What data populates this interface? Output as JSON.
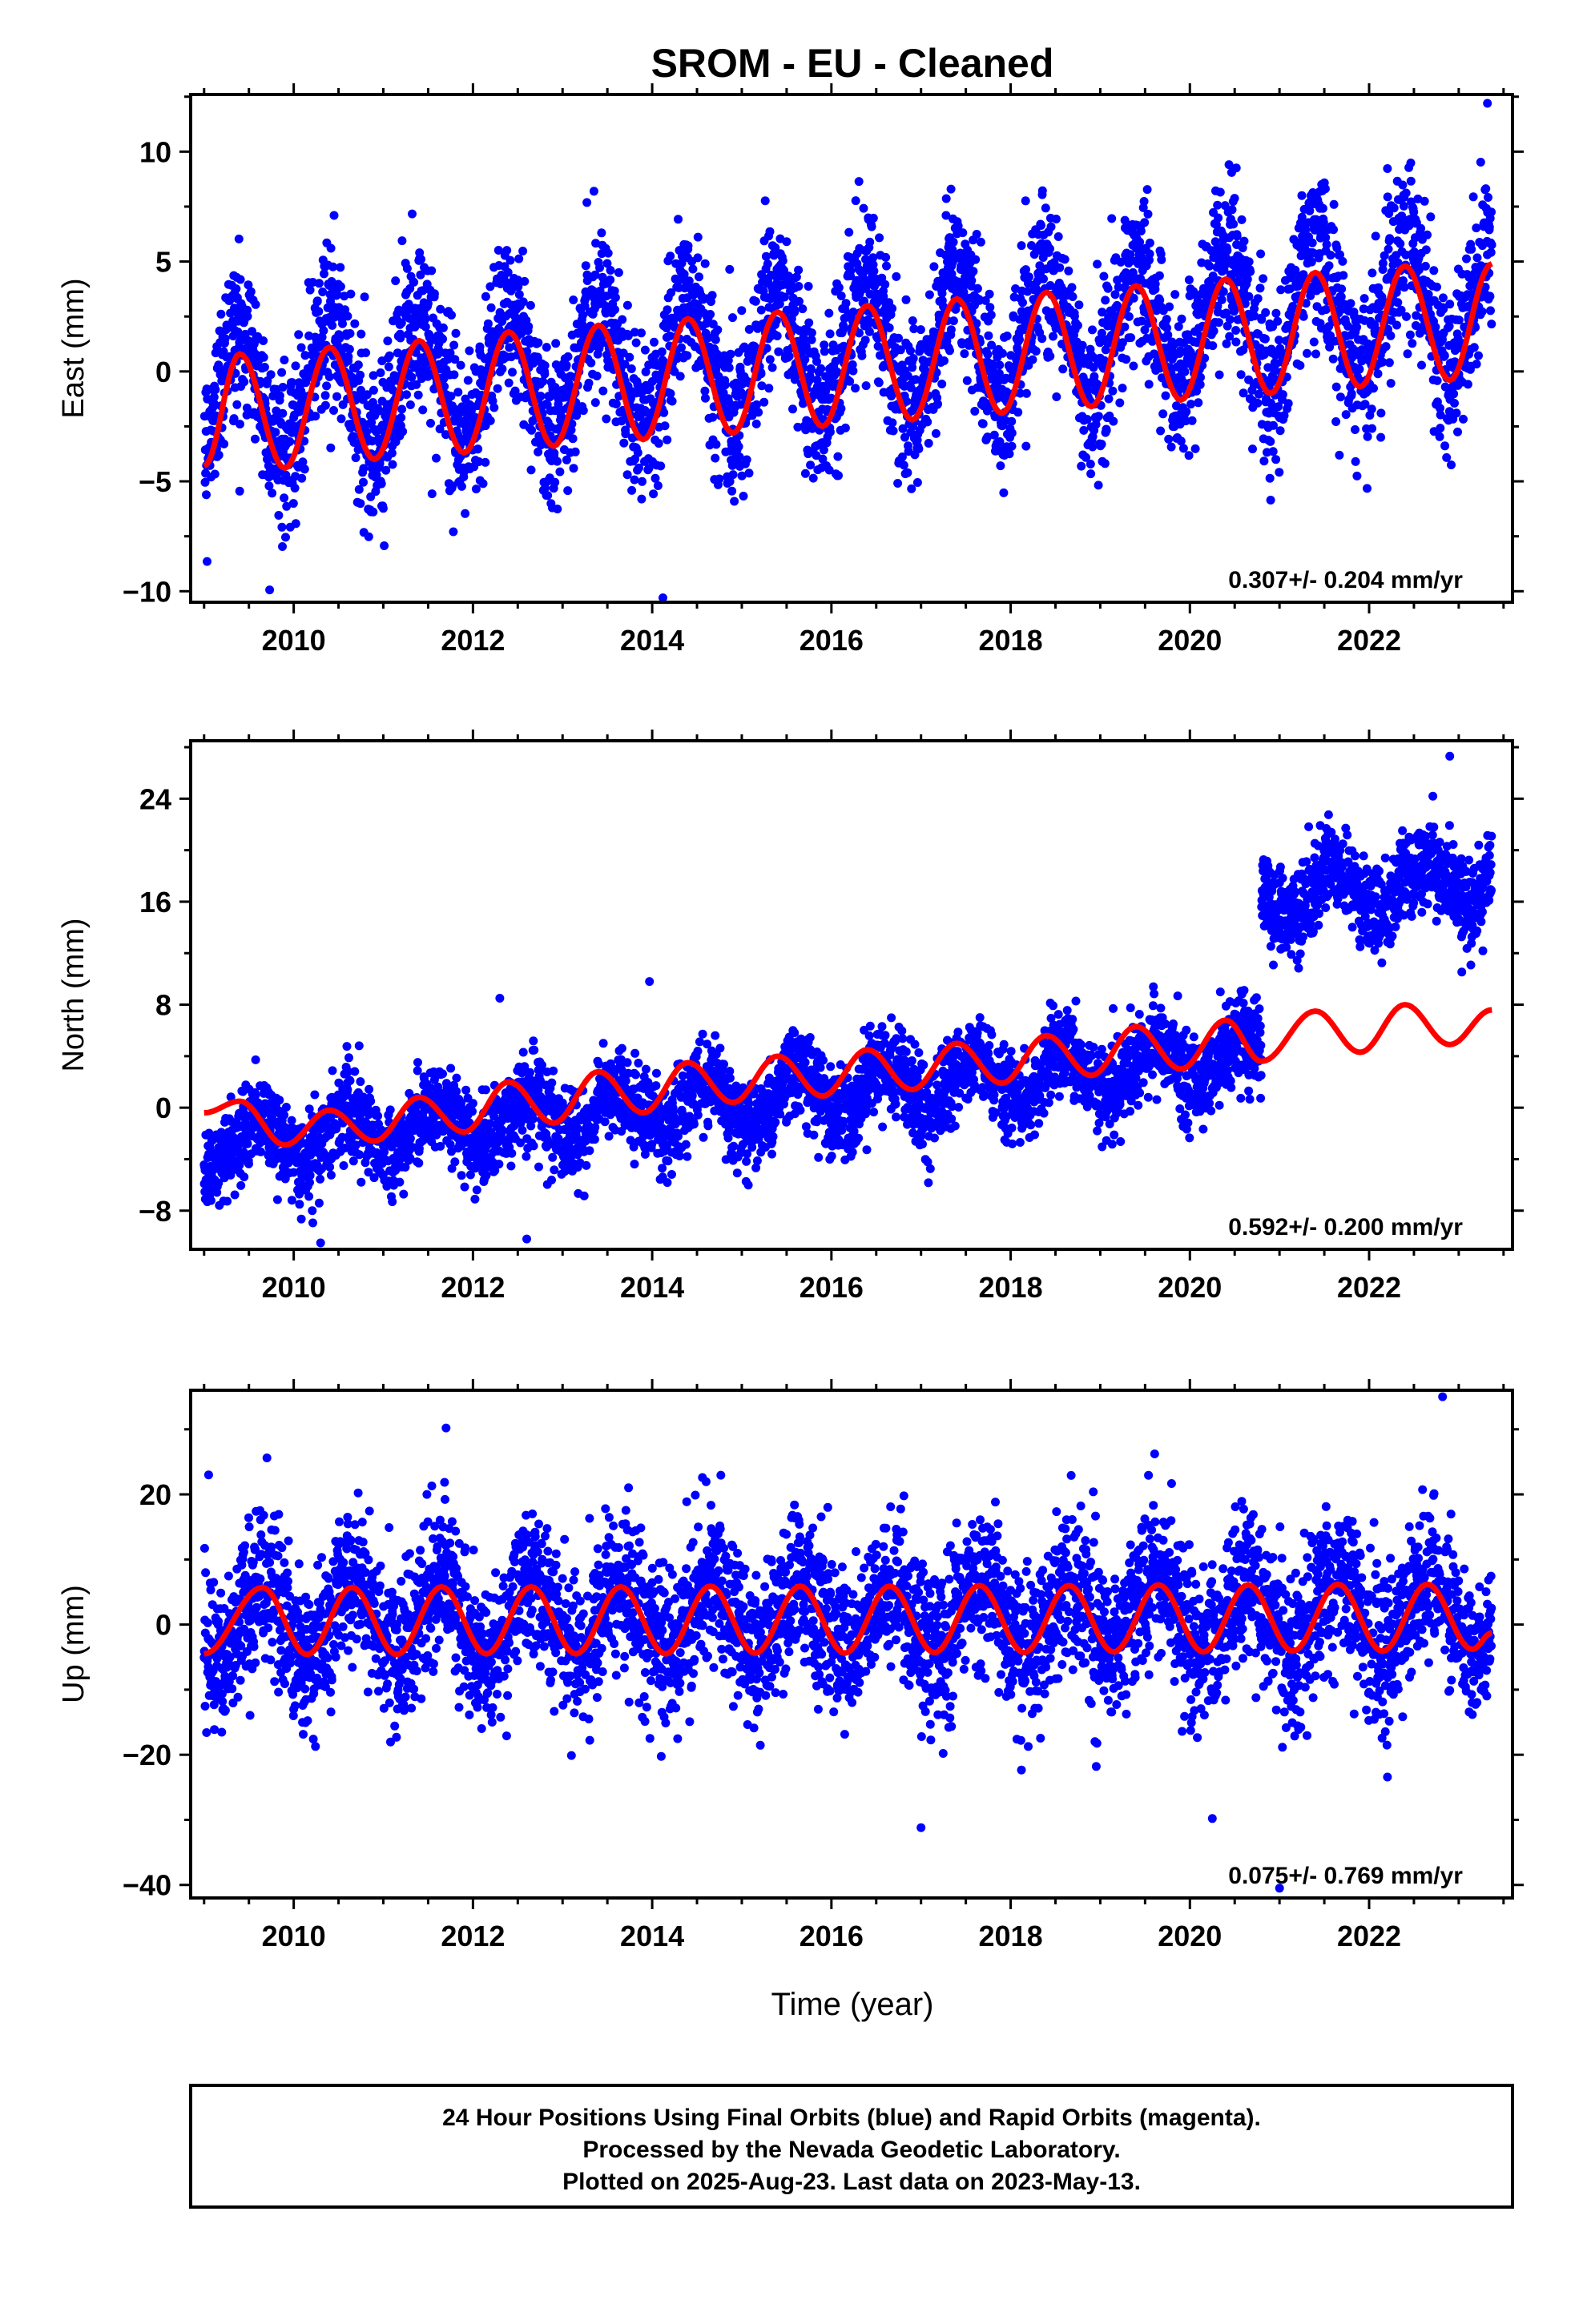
{
  "title": "SROM  - EU - Cleaned",
  "x_axis_label": "Time (year)",
  "colors": {
    "final_orbits": "#0000ff",
    "model_fit": "#ff0000",
    "rapid_orbits": "#ff00ff"
  },
  "chart_data": [
    {
      "type": "scatter",
      "component": "east",
      "ylabel": "East (mm)",
      "xlim": [
        2008.85,
        2023.6
      ],
      "ylim": [
        -10.5,
        12.6
      ],
      "x_ticks": [
        2010,
        2012,
        2014,
        2016,
        2018,
        2020,
        2022
      ],
      "x_tick_labels": [
        "2010",
        "2012",
        "2014",
        "2016",
        "2018",
        "2020",
        "2022"
      ],
      "y_ticks": [
        -10,
        -5,
        0,
        5,
        10
      ],
      "y_tick_labels": [
        "−10",
        "−5",
        "0",
        "5",
        "10"
      ],
      "rate_label": "0.307+/- 0.204 mm/yr",
      "rate_mm_per_yr": 0.307,
      "rate_sigma": 0.204,
      "series": [
        {
          "role": "daily positions (blue)",
          "data_start": 2009.0,
          "data_end": 2023.37,
          "gaps": [],
          "segments": [
            {
              "start": 2009.0,
              "end": 2023.37,
              "y0": -1.2,
              "slope": 0.307,
              "offset": 0
            }
          ],
          "seasonal_amplitude": 2.9,
          "seasonal_phase": 2009.15,
          "scatter_std": 1.8,
          "outliers": [
            {
              "x": 2014.12,
              "y": -10.3
            },
            {
              "x": 2023.32,
              "y": 12.2
            },
            {
              "x": 2010.45,
              "y": 7.1
            },
            {
              "x": 2013.35,
              "y": 8.2
            }
          ]
        },
        {
          "role": "model fit (red)",
          "breaks": [],
          "model_points": [
            [
              2009.0,
              -4.3
            ],
            [
              2009.4,
              0.8
            ],
            [
              2009.9,
              -4.4
            ],
            [
              2010.4,
              1.1
            ],
            [
              2010.9,
              -4.0
            ],
            [
              2011.4,
              1.4
            ],
            [
              2011.9,
              -3.7
            ],
            [
              2012.4,
              1.8
            ],
            [
              2012.9,
              -3.4
            ],
            [
              2013.4,
              2.1
            ],
            [
              2013.9,
              -3.1
            ],
            [
              2014.4,
              2.4
            ],
            [
              2014.9,
              -2.8
            ],
            [
              2015.4,
              2.7
            ],
            [
              2015.9,
              -2.5
            ],
            [
              2016.4,
              3.0
            ],
            [
              2016.9,
              -2.2
            ],
            [
              2017.4,
              3.3
            ],
            [
              2017.9,
              -1.9
            ],
            [
              2018.4,
              3.6
            ],
            [
              2018.9,
              -1.6
            ],
            [
              2019.4,
              3.9
            ],
            [
              2019.9,
              -1.3
            ],
            [
              2020.4,
              4.2
            ],
            [
              2020.9,
              -1.0
            ],
            [
              2021.4,
              4.5
            ],
            [
              2021.9,
              -0.7
            ],
            [
              2022.4,
              4.8
            ],
            [
              2022.9,
              -0.4
            ],
            [
              2023.37,
              4.9
            ]
          ]
        }
      ]
    },
    {
      "type": "scatter",
      "component": "north",
      "ylabel": "North (mm)",
      "xlim": [
        2008.85,
        2023.6
      ],
      "ylim": [
        -11,
        28.5
      ],
      "x_ticks": [
        2010,
        2012,
        2014,
        2016,
        2018,
        2020,
        2022
      ],
      "x_tick_labels": [
        "2010",
        "2012",
        "2014",
        "2016",
        "2018",
        "2020",
        "2022"
      ],
      "y_ticks": [
        -8,
        0,
        8,
        16,
        24
      ],
      "y_tick_labels": [
        "−8",
        "0",
        "8",
        "16",
        "24"
      ],
      "rate_label": "0.592+/- 0.200 mm/yr",
      "rate_mm_per_yr": 0.592,
      "rate_sigma": 0.2,
      "series": [
        {
          "role": "daily positions (blue)",
          "data_start": 2009.0,
          "data_end": 2023.37,
          "gaps": [],
          "segments": [
            {
              "start": 2009.0,
              "end": 2020.8,
              "y0": -3.0,
              "slope": 0.592,
              "offset": 0
            },
            {
              "start": 2020.8,
              "end": 2023.37,
              "y0": 16.4,
              "slope": 0.592,
              "offset": 0
            }
          ],
          "seasonal_amplitude": 1.8,
          "seasonal_phase": 2009.35,
          "scatter_std": 1.7,
          "outliers": [
            {
              "x": 2012.3,
              "y": 8.5
            },
            {
              "x": 2013.97,
              "y": 9.8
            },
            {
              "x": 2022.9,
              "y": 27.3
            },
            {
              "x": 2010.3,
              "y": -10.5
            },
            {
              "x": 2012.6,
              "y": -10.2
            },
            {
              "x": 2021.9,
              "y": 12.5
            }
          ]
        },
        {
          "role": "model fit (red)",
          "breaks": [],
          "model_points": [
            [
              2009.0,
              -0.4
            ],
            [
              2009.4,
              0.5
            ],
            [
              2009.9,
              -2.9
            ],
            [
              2010.4,
              -0.2
            ],
            [
              2010.9,
              -2.6
            ],
            [
              2011.4,
              0.8
            ],
            [
              2011.9,
              -1.9
            ],
            [
              2012.4,
              2.0
            ],
            [
              2012.9,
              -1.2
            ],
            [
              2013.4,
              2.8
            ],
            [
              2013.9,
              -0.4
            ],
            [
              2014.4,
              3.5
            ],
            [
              2014.9,
              0.4
            ],
            [
              2015.4,
              4.0
            ],
            [
              2015.9,
              0.9
            ],
            [
              2016.4,
              4.5
            ],
            [
              2016.9,
              1.4
            ],
            [
              2017.4,
              5.0
            ],
            [
              2017.9,
              1.9
            ],
            [
              2018.4,
              5.6
            ],
            [
              2018.9,
              2.5
            ],
            [
              2019.4,
              6.3
            ],
            [
              2019.9,
              3.0
            ],
            [
              2020.4,
              6.8
            ],
            [
              2020.8,
              3.6
            ],
            [
              2021.4,
              7.5
            ],
            [
              2021.9,
              4.3
            ],
            [
              2022.4,
              8.0
            ],
            [
              2022.9,
              4.9
            ],
            [
              2023.37,
              7.6
            ]
          ]
        }
      ]
    },
    {
      "type": "scatter",
      "component": "up",
      "ylabel": "Up (mm)",
      "xlim": [
        2008.85,
        2023.6
      ],
      "ylim": [
        -42,
        36
      ],
      "x_ticks": [
        2010,
        2012,
        2014,
        2016,
        2018,
        2020,
        2022
      ],
      "x_tick_labels": [
        "2010",
        "2012",
        "2014",
        "2016",
        "2018",
        "2020",
        "2022"
      ],
      "y_ticks": [
        -40,
        -20,
        0,
        20
      ],
      "y_tick_labels": [
        "−40",
        "−20",
        "0",
        "20"
      ],
      "rate_label": "0.075+/- 0.769 mm/yr",
      "rate_mm_per_yr": 0.075,
      "rate_sigma": 0.769,
      "series": [
        {
          "role": "daily positions (blue)",
          "data_start": 2009.0,
          "data_end": 2023.37,
          "gaps": [],
          "segments": [
            {
              "start": 2009.0,
              "end": 2023.37,
              "y0": 0.5,
              "slope": 0.075,
              "offset": 0
            }
          ],
          "seasonal_amplitude": 5.5,
          "seasonal_phase": 2009.4,
          "scatter_std": 5.8,
          "outliers": [
            {
              "x": 2022.82,
              "y": 35
            },
            {
              "x": 2011.7,
              "y": 30.2
            },
            {
              "x": 2017.0,
              "y": -31.2
            },
            {
              "x": 2021.0,
              "y": -40.5
            },
            {
              "x": 2020.25,
              "y": -29.8
            },
            {
              "x": 2009.05,
              "y": 23
            }
          ]
        },
        {
          "role": "model fit (red)",
          "breaks": [],
          "model_points": [
            [
              2009.0,
              -4.5
            ],
            [
              2009.65,
              5.7
            ],
            [
              2010.15,
              -4.6
            ],
            [
              2010.65,
              5.7
            ],
            [
              2011.15,
              -4.6
            ],
            [
              2011.65,
              5.8
            ],
            [
              2012.15,
              -4.5
            ],
            [
              2012.65,
              5.8
            ],
            [
              2013.15,
              -4.5
            ],
            [
              2013.65,
              5.8
            ],
            [
              2014.15,
              -4.5
            ],
            [
              2014.65,
              5.9
            ],
            [
              2015.15,
              -4.4
            ],
            [
              2015.65,
              5.9
            ],
            [
              2016.15,
              -4.4
            ],
            [
              2016.65,
              5.9
            ],
            [
              2017.15,
              -4.3
            ],
            [
              2017.65,
              6.0
            ],
            [
              2018.15,
              -4.3
            ],
            [
              2018.65,
              6.0
            ],
            [
              2019.15,
              -4.2
            ],
            [
              2019.65,
              6.1
            ],
            [
              2020.15,
              -4.2
            ],
            [
              2020.65,
              6.1
            ],
            [
              2021.15,
              -4.1
            ],
            [
              2021.65,
              6.2
            ],
            [
              2022.15,
              -4.1
            ],
            [
              2022.65,
              6.2
            ],
            [
              2023.15,
              -3.8
            ],
            [
              2023.37,
              -1.3
            ]
          ]
        }
      ]
    }
  ],
  "footer": {
    "lines": [
      "24 Hour Positions Using Final Orbits (blue) and Rapid Orbits (magenta).",
      "Processed by the Nevada Geodetic Laboratory.",
      "Plotted on 2025-Aug-23. Last data on 2023-May-13."
    ]
  }
}
